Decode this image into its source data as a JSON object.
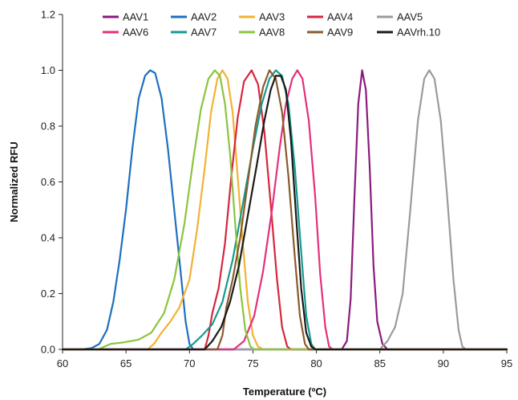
{
  "chart_data": {
    "type": "line",
    "title": "",
    "xlabel": "Temperature (ºC)",
    "ylabel": "Normalized RFU",
    "xlim": [
      60,
      95
    ],
    "ylim": [
      0,
      1.2
    ],
    "x_ticks": [
      "60",
      "65",
      "70",
      "75",
      "80",
      "85",
      "90",
      "95"
    ],
    "y_ticks": [
      "0.0",
      "0.2",
      "0.4",
      "0.6",
      "0.8",
      "1.0",
      "1.2"
    ],
    "grid": false,
    "legend_position": "top",
    "series": [
      {
        "name": "AAV1",
        "color": "#8B1A7E",
        "points": [
          [
            60,
            0
          ],
          [
            82.0,
            0
          ],
          [
            82.4,
            0.03
          ],
          [
            82.7,
            0.18
          ],
          [
            83.0,
            0.55
          ],
          [
            83.3,
            0.88
          ],
          [
            83.6,
            1.0
          ],
          [
            83.9,
            0.93
          ],
          [
            84.2,
            0.65
          ],
          [
            84.5,
            0.3
          ],
          [
            84.8,
            0.1
          ],
          [
            85.2,
            0.02
          ],
          [
            85.6,
            0
          ],
          [
            95,
            0
          ]
        ]
      },
      {
        "name": "AAV2",
        "color": "#1F6FBF",
        "points": [
          [
            60,
            0
          ],
          [
            61.5,
            0
          ],
          [
            62.3,
            0.005
          ],
          [
            62.9,
            0.02
          ],
          [
            63.5,
            0.07
          ],
          [
            64.0,
            0.17
          ],
          [
            64.5,
            0.32
          ],
          [
            65.0,
            0.5
          ],
          [
            65.5,
            0.72
          ],
          [
            66.0,
            0.9
          ],
          [
            66.5,
            0.98
          ],
          [
            66.9,
            1.0
          ],
          [
            67.3,
            0.99
          ],
          [
            67.8,
            0.9
          ],
          [
            68.3,
            0.72
          ],
          [
            68.8,
            0.5
          ],
          [
            69.3,
            0.28
          ],
          [
            69.7,
            0.1
          ],
          [
            70.0,
            0.02
          ],
          [
            70.3,
            0
          ],
          [
            95,
            0
          ]
        ]
      },
      {
        "name": "AAV3",
        "color": "#F2B233",
        "points": [
          [
            60,
            0
          ],
          [
            66.7,
            0
          ],
          [
            67.2,
            0.02
          ],
          [
            67.8,
            0.06
          ],
          [
            68.5,
            0.1
          ],
          [
            69.2,
            0.15
          ],
          [
            70.0,
            0.25
          ],
          [
            70.6,
            0.43
          ],
          [
            71.2,
            0.65
          ],
          [
            71.7,
            0.85
          ],
          [
            72.2,
            0.97
          ],
          [
            72.6,
            1.0
          ],
          [
            73.0,
            0.97
          ],
          [
            73.4,
            0.85
          ],
          [
            73.8,
            0.62
          ],
          [
            74.2,
            0.38
          ],
          [
            74.6,
            0.17
          ],
          [
            75.0,
            0.05
          ],
          [
            75.4,
            0.01
          ],
          [
            75.8,
            0
          ],
          [
            95,
            0
          ]
        ]
      },
      {
        "name": "AAV4",
        "color": "#D7263D",
        "points": [
          [
            60,
            0
          ],
          [
            71.2,
            0
          ],
          [
            71.5,
            0.05
          ],
          [
            71.8,
            0.13
          ],
          [
            72.3,
            0.22
          ],
          [
            72.8,
            0.38
          ],
          [
            73.3,
            0.62
          ],
          [
            73.8,
            0.83
          ],
          [
            74.3,
            0.96
          ],
          [
            74.9,
            1.0
          ],
          [
            75.4,
            0.95
          ],
          [
            75.9,
            0.78
          ],
          [
            76.4,
            0.52
          ],
          [
            76.9,
            0.25
          ],
          [
            77.3,
            0.08
          ],
          [
            77.7,
            0.01
          ],
          [
            78.0,
            0
          ],
          [
            95,
            0
          ]
        ]
      },
      {
        "name": "AAV5",
        "color": "#9B9B9B",
        "points": [
          [
            60,
            0
          ],
          [
            85.0,
            0
          ],
          [
            85.6,
            0.03
          ],
          [
            86.2,
            0.08
          ],
          [
            86.8,
            0.2
          ],
          [
            87.4,
            0.5
          ],
          [
            88.0,
            0.82
          ],
          [
            88.5,
            0.97
          ],
          [
            88.9,
            1.0
          ],
          [
            89.3,
            0.97
          ],
          [
            89.8,
            0.82
          ],
          [
            90.3,
            0.55
          ],
          [
            90.8,
            0.25
          ],
          [
            91.2,
            0.07
          ],
          [
            91.5,
            0.01
          ],
          [
            91.8,
            0
          ],
          [
            95,
            0
          ]
        ]
      },
      {
        "name": "AAV6",
        "color": "#E4307A",
        "points": [
          [
            60,
            0
          ],
          [
            73.5,
            0
          ],
          [
            74.3,
            0.03
          ],
          [
            75.1,
            0.12
          ],
          [
            75.8,
            0.28
          ],
          [
            76.5,
            0.5
          ],
          [
            77.1,
            0.72
          ],
          [
            77.6,
            0.88
          ],
          [
            78.1,
            0.97
          ],
          [
            78.5,
            1.0
          ],
          [
            78.9,
            0.97
          ],
          [
            79.4,
            0.82
          ],
          [
            79.9,
            0.55
          ],
          [
            80.3,
            0.27
          ],
          [
            80.7,
            0.08
          ],
          [
            81.0,
            0.01
          ],
          [
            81.3,
            0
          ],
          [
            95,
            0
          ]
        ]
      },
      {
        "name": "AAV7",
        "color": "#169A8F",
        "points": [
          [
            60,
            0
          ],
          [
            69.7,
            0
          ],
          [
            70.3,
            0.02
          ],
          [
            71.0,
            0.05
          ],
          [
            71.8,
            0.09
          ],
          [
            72.6,
            0.17
          ],
          [
            73.4,
            0.32
          ],
          [
            74.2,
            0.52
          ],
          [
            75.0,
            0.72
          ],
          [
            75.7,
            0.88
          ],
          [
            76.3,
            0.97
          ],
          [
            76.8,
            1.0
          ],
          [
            77.3,
            0.98
          ],
          [
            77.8,
            0.88
          ],
          [
            78.3,
            0.65
          ],
          [
            78.8,
            0.35
          ],
          [
            79.2,
            0.12
          ],
          [
            79.6,
            0.02
          ],
          [
            79.9,
            0
          ],
          [
            95,
            0
          ]
        ]
      },
      {
        "name": "AAV8",
        "color": "#8BC43F",
        "points": [
          [
            60,
            0
          ],
          [
            62.8,
            0
          ],
          [
            63.3,
            0.01
          ],
          [
            63.8,
            0.02
          ],
          [
            64.8,
            0.025
          ],
          [
            66.0,
            0.035
          ],
          [
            67.0,
            0.06
          ],
          [
            68.0,
            0.13
          ],
          [
            68.8,
            0.25
          ],
          [
            69.6,
            0.45
          ],
          [
            70.3,
            0.68
          ],
          [
            70.9,
            0.86
          ],
          [
            71.5,
            0.97
          ],
          [
            72.0,
            1.0
          ],
          [
            72.4,
            0.98
          ],
          [
            72.8,
            0.88
          ],
          [
            73.2,
            0.7
          ],
          [
            73.6,
            0.45
          ],
          [
            74.0,
            0.22
          ],
          [
            74.4,
            0.07
          ],
          [
            74.8,
            0.01
          ],
          [
            75.1,
            0
          ],
          [
            95,
            0
          ]
        ]
      },
      {
        "name": "AAV9",
        "color": "#8B5A2B",
        "points": [
          [
            60,
            0
          ],
          [
            72.2,
            0
          ],
          [
            72.6,
            0.05
          ],
          [
            72.9,
            0.15
          ],
          [
            73.4,
            0.25
          ],
          [
            74.0,
            0.4
          ],
          [
            74.6,
            0.6
          ],
          [
            75.2,
            0.8
          ],
          [
            75.8,
            0.94
          ],
          [
            76.3,
            1.0
          ],
          [
            76.8,
            0.97
          ],
          [
            77.3,
            0.85
          ],
          [
            77.8,
            0.62
          ],
          [
            78.3,
            0.33
          ],
          [
            78.7,
            0.12
          ],
          [
            79.1,
            0.02
          ],
          [
            79.4,
            0
          ],
          [
            95,
            0
          ]
        ]
      },
      {
        "name": "AAVrh.10",
        "color": "#1A1A1A",
        "points": [
          [
            60,
            0
          ],
          [
            71.2,
            0
          ],
          [
            71.8,
            0.03
          ],
          [
            72.5,
            0.08
          ],
          [
            73.2,
            0.17
          ],
          [
            73.9,
            0.3
          ],
          [
            74.6,
            0.48
          ],
          [
            75.3,
            0.66
          ],
          [
            75.9,
            0.82
          ],
          [
            76.4,
            0.93
          ],
          [
            76.8,
            0.98
          ],
          [
            77.2,
            0.98
          ],
          [
            77.6,
            0.93
          ],
          [
            78.0,
            0.75
          ],
          [
            78.4,
            0.48
          ],
          [
            78.8,
            0.22
          ],
          [
            79.2,
            0.06
          ],
          [
            79.6,
            0.01
          ],
          [
            79.9,
            0
          ],
          [
            95,
            0
          ]
        ]
      }
    ]
  }
}
